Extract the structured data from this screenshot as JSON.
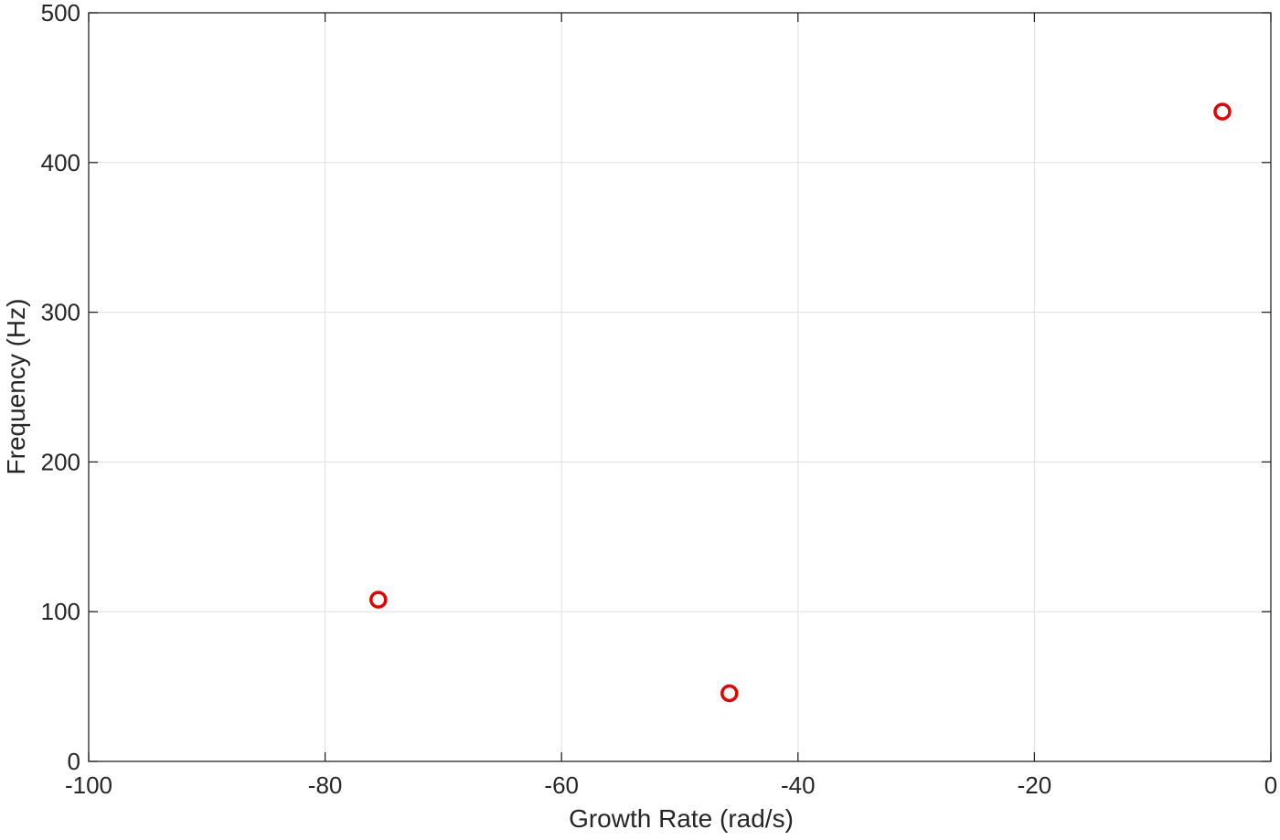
{
  "chart_data": {
    "type": "scatter",
    "title": "",
    "xlabel": "Growth Rate (rad/s)",
    "ylabel": "Frequency (Hz)",
    "xlim": [
      -100,
      0
    ],
    "ylim": [
      0,
      500
    ],
    "xticks": [
      -100,
      -80,
      -60,
      -40,
      -20,
      0
    ],
    "yticks": [
      0,
      100,
      200,
      300,
      400,
      500
    ],
    "grid": true,
    "marker": "open-circle",
    "marker_color": "#e60000",
    "series": [
      {
        "points": [
          {
            "x": -75.5,
            "y": 108
          },
          {
            "x": -45.8,
            "y": 45.5
          },
          {
            "x": -4.1,
            "y": 434
          }
        ]
      }
    ]
  }
}
